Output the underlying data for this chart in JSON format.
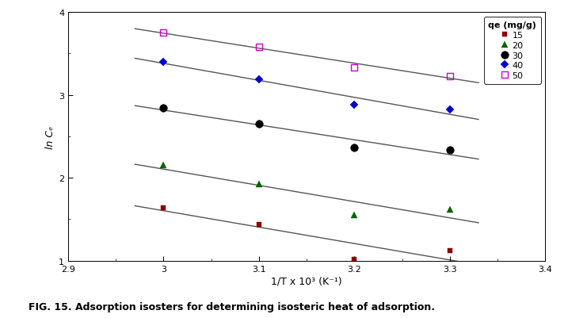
{
  "xlabel": "1/T x 10³ (K⁻¹)",
  "ylabel": "ln Cₑ",
  "xlim": [
    2.9,
    3.4
  ],
  "ylim": [
    1.0,
    4.0
  ],
  "xticks": [
    2.9,
    3.0,
    3.1,
    3.2,
    3.3,
    3.4
  ],
  "xticklabels": [
    "2.9",
    "3",
    "3.1",
    "3.2",
    "3.3",
    "3.4"
  ],
  "yticks": [
    1,
    2,
    3,
    4
  ],
  "caption_prefix": "FIG. 15. ",
  "caption_rest": "Adsorption isosters for determining isosteric heat of adsorption.",
  "series": [
    {
      "label": "15",
      "color": "#8B0000",
      "marker": "s",
      "markersize": 5,
      "fillstyle": "full",
      "x": [
        3.0,
        3.1,
        3.2,
        3.3
      ],
      "y": [
        1.64,
        1.44,
        1.02,
        1.12
      ]
    },
    {
      "label": "20",
      "color": "#006400",
      "marker": "^",
      "markersize": 6,
      "fillstyle": "full",
      "x": [
        3.0,
        3.1,
        3.2,
        3.3
      ],
      "y": [
        2.15,
        1.92,
        1.55,
        1.62
      ]
    },
    {
      "label": "30",
      "color": "#000000",
      "marker": "o",
      "markersize": 7,
      "fillstyle": "full",
      "x": [
        3.0,
        3.1,
        3.2,
        3.3
      ],
      "y": [
        2.84,
        2.65,
        2.36,
        2.34
      ]
    },
    {
      "label": "40",
      "color": "#0000CD",
      "marker": "D",
      "markersize": 5,
      "fillstyle": "full",
      "x": [
        3.0,
        3.1,
        3.2,
        3.3
      ],
      "y": [
        3.4,
        3.19,
        2.88,
        2.82
      ]
    },
    {
      "label": "50",
      "color": "#CC00CC",
      "marker": "s",
      "markersize": 6,
      "fillstyle": "none",
      "x": [
        3.0,
        3.1,
        3.2,
        3.3
      ],
      "y": [
        3.75,
        3.58,
        3.33,
        3.23
      ]
    }
  ],
  "line_color": "#555555",
  "line_width": 1.0,
  "line_xstart": 2.97,
  "line_xend": 3.33,
  "background_color": "#ffffff",
  "legend_title": "qe (mg/g)",
  "legend_title_fontsize": 8,
  "legend_fontsize": 8,
  "tick_fontsize": 8,
  "axis_label_fontsize": 9
}
